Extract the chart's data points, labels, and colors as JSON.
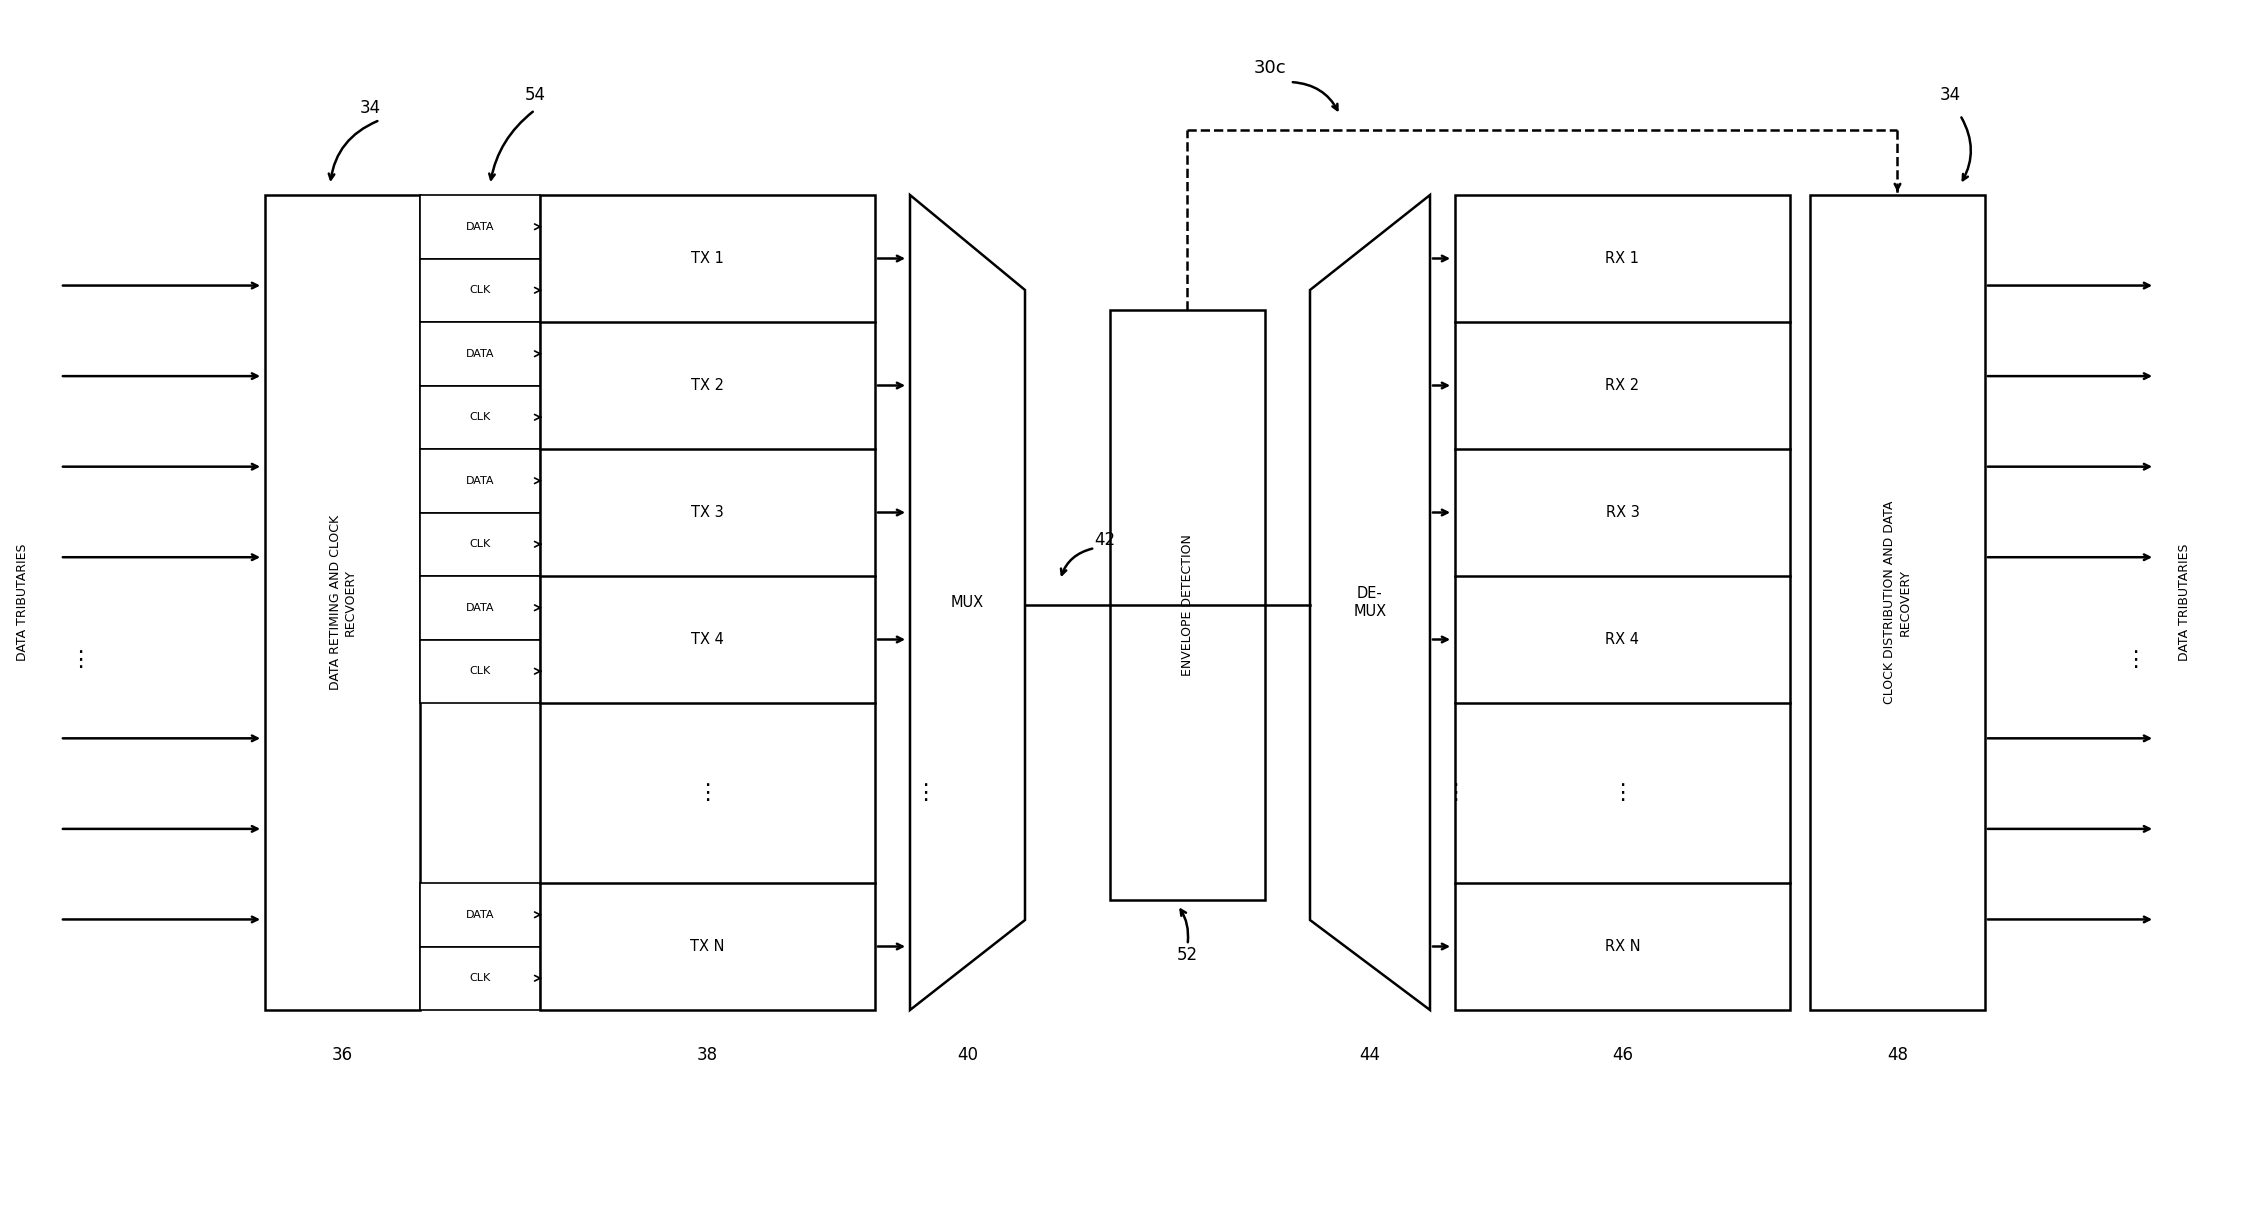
{
  "bg_color": "#ffffff",
  "line_color": "#000000",
  "fig_width": 22.47,
  "fig_height": 12.13,
  "label_30c": "30c",
  "label_34": "34",
  "label_36": "36",
  "label_38": "38",
  "label_40": "40",
  "label_42": "42",
  "label_44": "44",
  "label_46": "46",
  "label_48": "48",
  "label_52": "52",
  "label_54": "54",
  "text_data_tributaries": "DATA TRIBUTARIES",
  "text_retiming": "DATA RETIMING AND CLOCK\nRECVOERY",
  "text_tx_channels": [
    "TX 1",
    "TX 2",
    "TX 3",
    "TX 4",
    "TX N"
  ],
  "text_rx_channels": [
    "RX 1",
    "RX 2",
    "RX 3",
    "RX 4",
    "RX N"
  ],
  "text_mux": "MUX",
  "text_demux": "DE-\nMUX",
  "text_envelope": "ENVELOPE DETECTION",
  "text_clock_dist": "CLOCK DISTRIBUTION AND DATA\nRECOVERY",
  "lw": 1.8,
  "lw_thin": 1.2,
  "fs_main": 10.5,
  "fs_label": 9.0,
  "fs_small": 8.0,
  "fs_ref": 12.0,
  "fs_dots": 16
}
